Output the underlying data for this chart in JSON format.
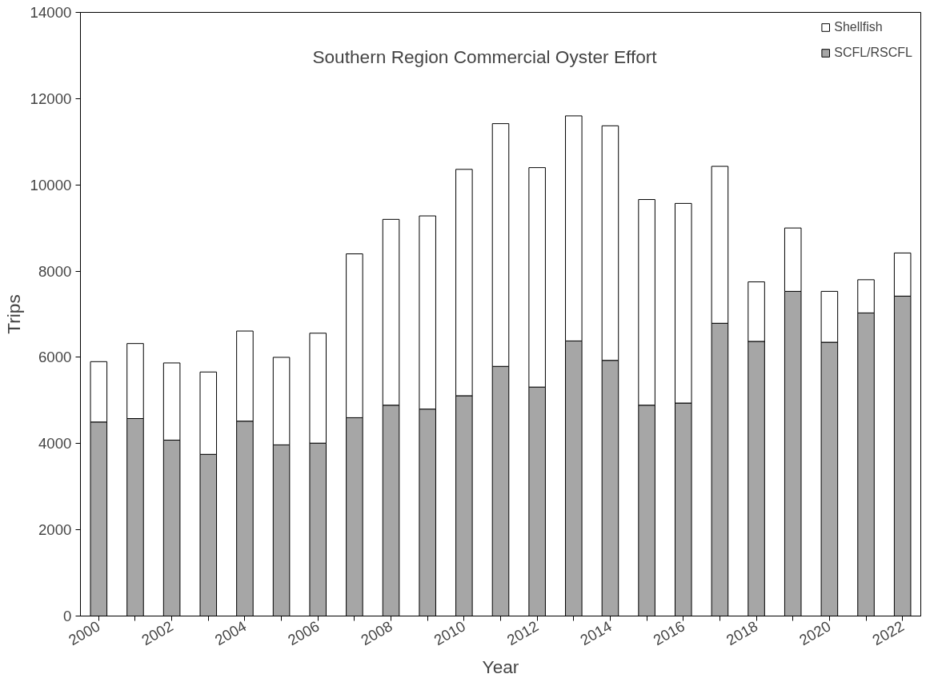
{
  "chart_data": {
    "type": "bar",
    "stacked": true,
    "title": "Southern Region Commercial Oyster Effort",
    "xlabel": "Year",
    "ylabel": "Trips",
    "categories": [
      "2000",
      null,
      "2002",
      null,
      "2004",
      null,
      "2006",
      null,
      "2008",
      null,
      "2010",
      null,
      "2012",
      null,
      "2014",
      null,
      "2016",
      null,
      "2018",
      null,
      "2020",
      null,
      "2022"
    ],
    "series": [
      {
        "name": "SCFL/RSCFL",
        "color": "#a6a6a6",
        "values": [
          4500,
          4580,
          4080,
          3750,
          4520,
          3970,
          4010,
          4600,
          4890,
          4800,
          5110,
          5790,
          5310,
          6380,
          5930,
          4890,
          4940,
          6790,
          6370,
          7530,
          6350,
          7030,
          7420
        ]
      },
      {
        "name": "Shellfish",
        "color": "#ffffff",
        "values": [
          1400,
          1740,
          1790,
          1910,
          2090,
          2030,
          2550,
          3800,
          4310,
          4480,
          5250,
          5630,
          5090,
          5220,
          5440,
          4770,
          4630,
          3640,
          1380,
          1470,
          1180,
          770,
          1000
        ]
      }
    ],
    "ylim": [
      0,
      14000
    ],
    "yticks": [
      0,
      2000,
      4000,
      6000,
      8000,
      10000,
      12000,
      14000
    ],
    "grid": false,
    "legend": "top right"
  }
}
